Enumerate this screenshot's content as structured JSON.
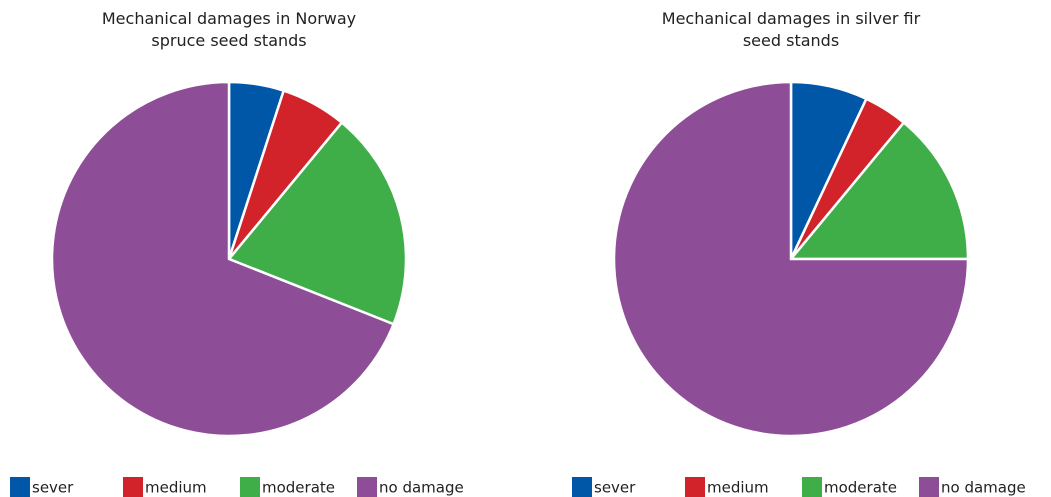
{
  "chart_data": [
    {
      "type": "pie",
      "title": "Mechanical damages in Norway spruce seed stands",
      "categories": [
        "sever",
        "medium",
        "moderate",
        "no damage"
      ],
      "values": [
        5,
        6,
        20,
        69
      ],
      "colors": [
        "#0057a8",
        "#d2232a",
        "#3fae49",
        "#8e4e97"
      ]
    },
    {
      "type": "pie",
      "title": "Mechanical damages in silver fir seed stands",
      "categories": [
        "sever",
        "medium",
        "moderate",
        "no damage"
      ],
      "values": [
        7,
        4,
        14,
        75
      ],
      "colors": [
        "#0057a8",
        "#d2232a",
        "#3fae49",
        "#8e4e97"
      ]
    }
  ]
}
